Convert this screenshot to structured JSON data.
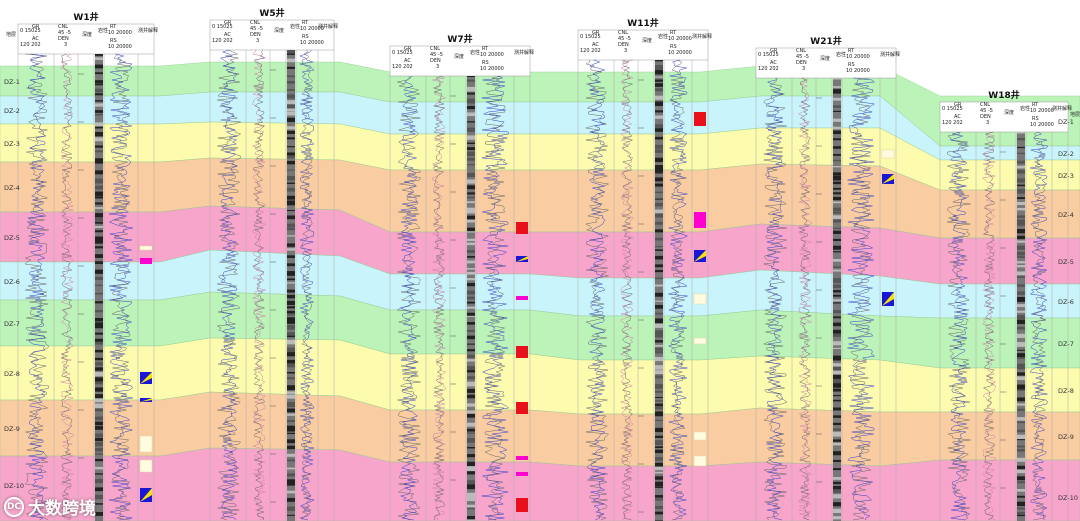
{
  "layers": [
    {
      "name": "DZ-1",
      "color": "#b9f3b6"
    },
    {
      "name": "DZ-2",
      "color": "#c8f4fb"
    },
    {
      "name": "DZ-3",
      "color": "#fdfbaa"
    },
    {
      "name": "DZ-4",
      "color": "#f9cb9c"
    },
    {
      "name": "DZ-5",
      "color": "#f7a1c9"
    },
    {
      "name": "DZ-6",
      "color": "#c8f4fb"
    },
    {
      "name": "DZ-7",
      "color": "#b9f3b6"
    },
    {
      "name": "DZ-8",
      "color": "#fdfbaa"
    },
    {
      "name": "DZ-9",
      "color": "#f9cb9c"
    },
    {
      "name": "DZ-10",
      "color": "#f7a1c9"
    }
  ],
  "side_label": "地层",
  "header_labels": {
    "gr": "GR",
    "gr_range": "0   15025",
    "cnl": "CNL",
    "cnl_range": "45   -5",
    "ac": "AC",
    "ac_range": "120   202",
    "den": "DEN",
    "den_range": "3",
    "depth": "深度",
    "lith": "岩性",
    "rt": "RT",
    "rt_range": "10   20000",
    "rs": "RS",
    "rs_range": "10   20000",
    "interp": "测井解释"
  },
  "wells": [
    {
      "name": "W1井"
    },
    {
      "name": "W5井"
    },
    {
      "name": "W7井"
    },
    {
      "name": "W11井"
    },
    {
      "name": "W21井"
    },
    {
      "name": "W18井"
    }
  ],
  "watermark": {
    "logo": "DC",
    "text": "大数跨境"
  },
  "colors": {
    "oil": "#e8101a",
    "gas": "#ff00d0",
    "water": "#1a16d8",
    "dry": "#fffbe0",
    "log_blue": "#3340c8",
    "log_gray": "#666666"
  }
}
